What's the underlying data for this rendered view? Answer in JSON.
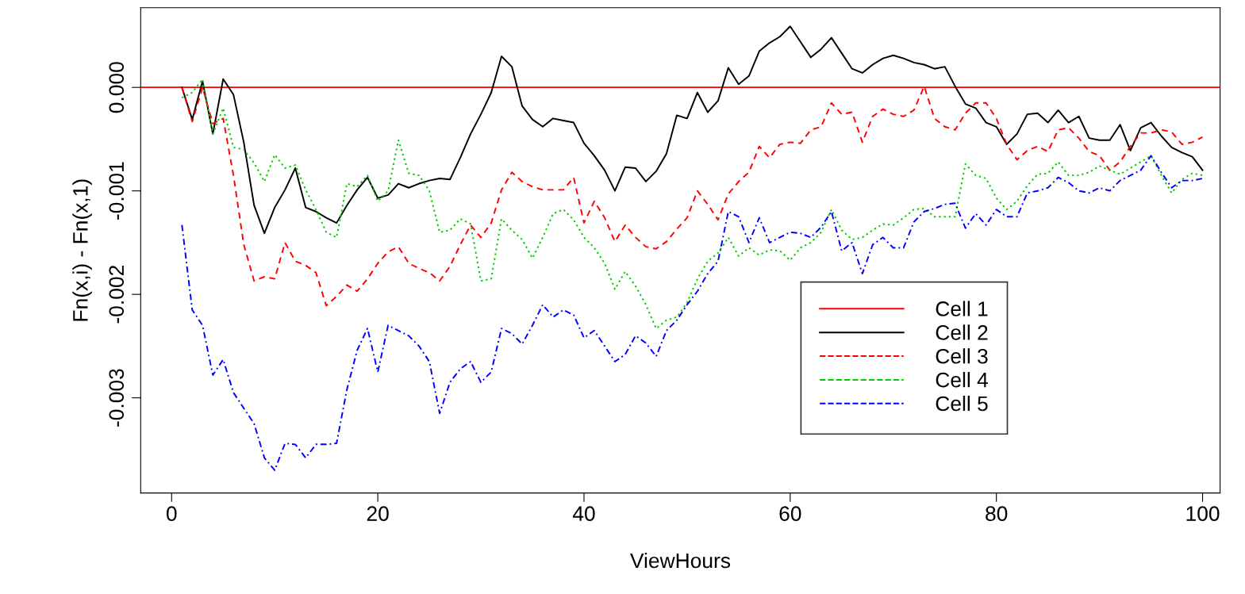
{
  "chart_data": {
    "type": "line",
    "xlabel": "ViewHours",
    "ylabel": "Fn(x,i) - Fn(x,1)",
    "x": [
      1,
      2,
      3,
      4,
      5,
      6,
      7,
      8,
      9,
      10,
      11,
      12,
      13,
      14,
      15,
      16,
      17,
      18,
      19,
      20,
      21,
      22,
      23,
      24,
      25,
      26,
      27,
      28,
      29,
      30,
      31,
      32,
      33,
      34,
      35,
      36,
      37,
      38,
      39,
      40,
      41,
      42,
      43,
      44,
      45,
      46,
      47,
      48,
      49,
      50,
      51,
      52,
      53,
      54,
      55,
      56,
      57,
      58,
      59,
      60,
      61,
      62,
      63,
      64,
      65,
      66,
      67,
      68,
      69,
      70,
      71,
      72,
      73,
      74,
      75,
      76,
      77,
      78,
      79,
      80,
      81,
      82,
      83,
      84,
      85,
      86,
      87,
      88,
      89,
      90,
      91,
      92,
      93,
      94,
      95,
      96,
      97,
      98,
      99,
      100
    ],
    "series": [
      {
        "name": "Cell 2",
        "color": "#000000",
        "line_style": "solid",
        "values": [
          0,
          -0.00031,
          6e-05,
          -0.00045,
          8e-05,
          -7e-05,
          -0.00053,
          -0.00114,
          -0.00141,
          -0.00116,
          -0.00099,
          -0.00078,
          -0.00116,
          -0.0012,
          -0.00126,
          -0.00131,
          -0.00114,
          -0.00099,
          -0.00087,
          -0.00107,
          -0.00104,
          -0.00093,
          -0.00097,
          -0.00093,
          -0.0009,
          -0.00088,
          -0.00089,
          -0.00068,
          -0.00045,
          -0.00026,
          -5e-05,
          0.0003,
          0.0002,
          -0.00018,
          -0.00031,
          -0.00038,
          -0.0003,
          -0.00032,
          -0.00034,
          -0.00054,
          -0.00066,
          -0.0008,
          -0.001,
          -0.00077,
          -0.00078,
          -0.00091,
          -0.00081,
          -0.00064,
          -0.00027,
          -0.0003,
          -5e-05,
          -0.00024,
          -0.00013,
          0.00019,
          3e-05,
          0.00011,
          0.00035,
          0.00043,
          0.00049,
          0.00059,
          0.00044,
          0.00029,
          0.00037,
          0.00048,
          0.00033,
          0.00018,
          0.00014,
          0.00022,
          0.00028,
          0.00031,
          0.00028,
          0.00024,
          0.00022,
          0.00018,
          0.0002,
          1e-05,
          -0.00016,
          -0.0002,
          -0.00034,
          -0.00038,
          -0.00055,
          -0.00045,
          -0.00026,
          -0.00025,
          -0.00034,
          -0.00022,
          -0.00034,
          -0.00028,
          -0.00049,
          -0.00051,
          -0.00051,
          -0.00036,
          -0.00061,
          -0.00039,
          -0.00034,
          -0.00047,
          -0.00058,
          -0.00063,
          -0.00067,
          -0.0008
        ]
      },
      {
        "name": "Cell 3",
        "color": "#ff0000",
        "line_style": "dashed",
        "values": [
          0,
          -0.00033,
          0,
          -0.00035,
          -0.0003,
          -0.00085,
          -0.00152,
          -0.00187,
          -0.00183,
          -0.00185,
          -0.0015,
          -0.00168,
          -0.00172,
          -0.00179,
          -0.00211,
          -0.00202,
          -0.00191,
          -0.00197,
          -0.00185,
          -0.0017,
          -0.00159,
          -0.00154,
          -0.0017,
          -0.00175,
          -0.00179,
          -0.00187,
          -0.00173,
          -0.00152,
          -0.00133,
          -0.00145,
          -0.00131,
          -0.00099,
          -0.00082,
          -0.00091,
          -0.00096,
          -0.00099,
          -0.00099,
          -0.00099,
          -0.00087,
          -0.00131,
          -0.0011,
          -0.00126,
          -0.00149,
          -0.00133,
          -0.00145,
          -0.00154,
          -0.00156,
          -0.00149,
          -0.00137,
          -0.00126,
          -0.001,
          -0.00113,
          -0.00128,
          -0.00103,
          -0.00091,
          -0.00082,
          -0.00057,
          -0.00068,
          -0.00055,
          -0.00053,
          -0.00054,
          -0.00041,
          -0.00038,
          -0.00015,
          -0.00026,
          -0.00024,
          -0.00053,
          -0.00028,
          -0.00021,
          -0.00026,
          -0.00028,
          -0.00022,
          1e-05,
          -0.0003,
          -0.00038,
          -0.00041,
          -0.00025,
          -0.00015,
          -0.00015,
          -0.0003,
          -0.00055,
          -0.0007,
          -0.00061,
          -0.00057,
          -0.00062,
          -0.00041,
          -0.00039,
          -0.00049,
          -0.00062,
          -0.00066,
          -0.0008,
          -0.00072,
          -0.00057,
          -0.00044,
          -0.00044,
          -0.00041,
          -0.00043,
          -0.00055,
          -0.00053,
          -0.00048
        ]
      },
      {
        "name": "Cell 4",
        "color": "#00cc00",
        "line_style": "dotted",
        "values": [
          -0.0001,
          -5e-05,
          8e-05,
          -0.00045,
          -0.0002,
          -0.00058,
          -0.0006,
          -0.00073,
          -0.00091,
          -0.00065,
          -0.00078,
          -0.00075,
          -0.00099,
          -0.00118,
          -0.0014,
          -0.00145,
          -0.00093,
          -0.00096,
          -0.00085,
          -0.0011,
          -0.001,
          -0.00051,
          -0.00083,
          -0.00085,
          -0.001,
          -0.0014,
          -0.00138,
          -0.00127,
          -0.00132,
          -0.00187,
          -0.00185,
          -0.00127,
          -0.00138,
          -0.00147,
          -0.00165,
          -0.00145,
          -0.00122,
          -0.00118,
          -0.00128,
          -0.00145,
          -0.00155,
          -0.0017,
          -0.00195,
          -0.00178,
          -0.00192,
          -0.0021,
          -0.00233,
          -0.00225,
          -0.00222,
          -0.00208,
          -0.00185,
          -0.00168,
          -0.0016,
          -0.00145,
          -0.00163,
          -0.00155,
          -0.00162,
          -0.00157,
          -0.00158,
          -0.00167,
          -0.00155,
          -0.0015,
          -0.0014,
          -0.00118,
          -0.00138,
          -0.00147,
          -0.00145,
          -0.00138,
          -0.00132,
          -0.00133,
          -0.00126,
          -0.00118,
          -0.00117,
          -0.00125,
          -0.00125,
          -0.00125,
          -0.00074,
          -0.00085,
          -0.00088,
          -0.00107,
          -0.00118,
          -0.0011,
          -0.00095,
          -0.00084,
          -0.00083,
          -0.00072,
          -0.00085,
          -0.00085,
          -0.00082,
          -0.00076,
          -0.0008,
          -0.00084,
          -0.00078,
          -0.00072,
          -0.00066,
          -0.00085,
          -0.00102,
          -0.00089,
          -0.00083,
          -0.00085
        ]
      },
      {
        "name": "Cell 5",
        "color": "#0000ff",
        "line_style": "dashdot",
        "values": [
          -0.00133,
          -0.00215,
          -0.0023,
          -0.00278,
          -0.00263,
          -0.00295,
          -0.0031,
          -0.00325,
          -0.00358,
          -0.0037,
          -0.00344,
          -0.00345,
          -0.00358,
          -0.00345,
          -0.00345,
          -0.00344,
          -0.00292,
          -0.00254,
          -0.00233,
          -0.00275,
          -0.0023,
          -0.00235,
          -0.0024,
          -0.0025,
          -0.00265,
          -0.00315,
          -0.00285,
          -0.00272,
          -0.00265,
          -0.00285,
          -0.00275,
          -0.00233,
          -0.00238,
          -0.00248,
          -0.0023,
          -0.0021,
          -0.00222,
          -0.00215,
          -0.0022,
          -0.00242,
          -0.00235,
          -0.0025,
          -0.00265,
          -0.00258,
          -0.0024,
          -0.00247,
          -0.0026,
          -0.00235,
          -0.00225,
          -0.0021,
          -0.00197,
          -0.0018,
          -0.00168,
          -0.0012,
          -0.00125,
          -0.0015,
          -0.00126,
          -0.0015,
          -0.00145,
          -0.0014,
          -0.00141,
          -0.00145,
          -0.00135,
          -0.0012,
          -0.00158,
          -0.0015,
          -0.0018,
          -0.00152,
          -0.00145,
          -0.00155,
          -0.00155,
          -0.0013,
          -0.0012,
          -0.00117,
          -0.00113,
          -0.00112,
          -0.00136,
          -0.00122,
          -0.00133,
          -0.00118,
          -0.00125,
          -0.00125,
          -0.00102,
          -0.001,
          -0.00097,
          -0.00087,
          -0.00092,
          -0.001,
          -0.00102,
          -0.00097,
          -0.001,
          -0.0009,
          -0.00085,
          -0.0008,
          -0.00066,
          -0.00082,
          -0.00097,
          -0.0009,
          -0.0009,
          -0.00088
        ]
      }
    ],
    "ref_lines": [
      {
        "axis": "y",
        "value": 0,
        "label": "Cell 1",
        "color": "#ff0000",
        "line_style": "solid"
      }
    ],
    "xlim": [
      -3,
      101.7
    ],
    "xticks": [
      0,
      20,
      40,
      60,
      80,
      100
    ],
    "ylim": [
      -0.00392,
      0.00077
    ],
    "yticks": [
      {
        "value": -0.003,
        "label": "-0.003"
      },
      {
        "value": -0.002,
        "label": "-0.002"
      },
      {
        "value": -0.001,
        "label": "-0.001"
      },
      {
        "value": 0,
        "label": "0.000"
      }
    ],
    "grid": false,
    "legend": "bottom right"
  }
}
